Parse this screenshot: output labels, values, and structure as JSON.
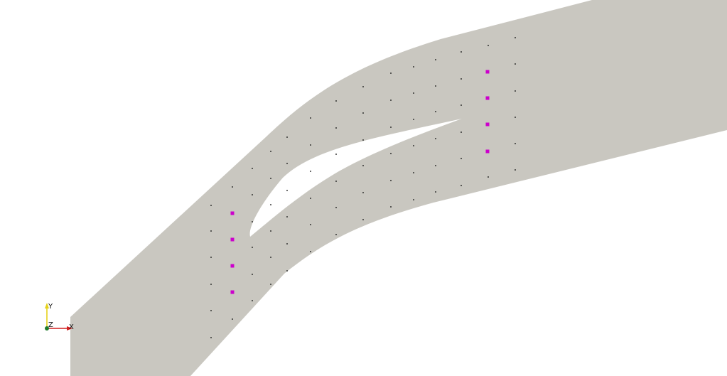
{
  "scene": {
    "colors": {
      "background": "#ffffff",
      "domain_fill": "#c9c7c0",
      "blade_fill": "#ffffff",
      "mesh_point": "#1a1a1a",
      "probe_marker": "#cc00cc"
    }
  },
  "orientation_axes": {
    "x_label": "X",
    "y_label": "Y",
    "z_label": "Z",
    "x_color": "#d11f1f",
    "y_color": "#e6d21a",
    "z_color": "#1f7a2a"
  }
}
